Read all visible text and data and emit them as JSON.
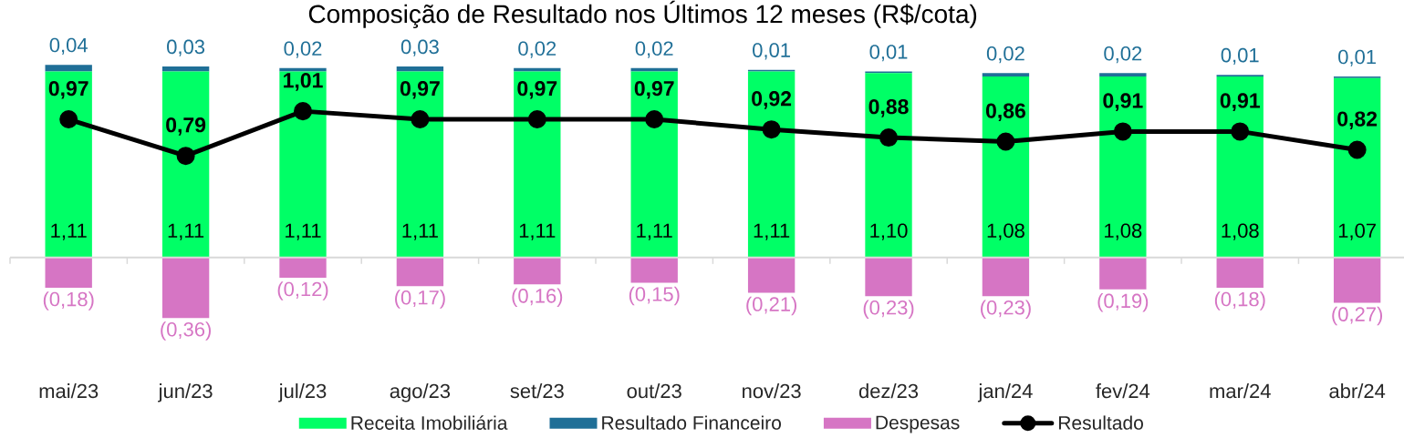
{
  "chart_data": {
    "type": "bar",
    "title": "Composição de Resultado nos Últimos 12 meses (R$/cota)",
    "categories": [
      "mai/23",
      "jun/23",
      "jul/23",
      "ago/23",
      "set/23",
      "out/23",
      "nov/23",
      "dez/23",
      "jan/24",
      "fev/24",
      "mar/24",
      "abr/24"
    ],
    "stacked": true,
    "series": [
      {
        "name": "Receita Imobiliária",
        "color": "#00ff66",
        "values": [
          1.11,
          1.11,
          1.11,
          1.11,
          1.11,
          1.11,
          1.11,
          1.1,
          1.08,
          1.08,
          1.08,
          1.07
        ],
        "value_labels": [
          "1,11",
          "1,11",
          "1,11",
          "1,11",
          "1,11",
          "1,11",
          "1,11",
          "1,10",
          "1,08",
          "1,08",
          "1,08",
          "1,07"
        ]
      },
      {
        "name": "Resultado Financeiro",
        "color": "#1f6f97",
        "values": [
          0.04,
          0.03,
          0.02,
          0.03,
          0.02,
          0.02,
          0.01,
          0.01,
          0.02,
          0.02,
          0.01,
          0.01
        ],
        "value_labels": [
          "0,04",
          "0,03",
          "0,02",
          "0,03",
          "0,02",
          "0,02",
          "0,01",
          "0,01",
          "0,02",
          "0,02",
          "0,01",
          "0,01"
        ]
      },
      {
        "name": "Despesas",
        "color": "#d675c4",
        "values": [
          -0.18,
          -0.36,
          -0.12,
          -0.17,
          -0.16,
          -0.15,
          -0.21,
          -0.23,
          -0.23,
          -0.19,
          -0.18,
          -0.27
        ],
        "value_labels": [
          "(0,18)",
          "(0,36)",
          "(0,12)",
          "(0,17)",
          "(0,16)",
          "(0,15)",
          "(0,21)",
          "(0,23)",
          "(0,23)",
          "(0,19)",
          "(0,18)",
          "(0,27)"
        ]
      },
      {
        "name": "Resultado",
        "type": "line",
        "axis": "y2",
        "color": "#000000",
        "marker": "circle",
        "values": [
          0.97,
          0.79,
          1.01,
          0.97,
          0.97,
          0.97,
          0.92,
          0.88,
          0.86,
          0.91,
          0.91,
          0.82
        ],
        "value_labels": [
          "0,97",
          "0,79",
          "1,01",
          "0,97",
          "0,97",
          "0,97",
          "0,92",
          "0,88",
          "0,86",
          "0,91",
          "0,91",
          "0,82"
        ]
      }
    ],
    "tick_labels": "x",
    "legend": "bottom"
  }
}
